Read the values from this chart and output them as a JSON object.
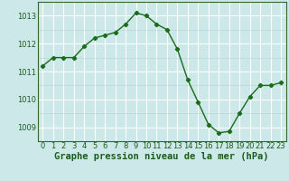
{
  "x": [
    0,
    1,
    2,
    3,
    4,
    5,
    6,
    7,
    8,
    9,
    10,
    11,
    12,
    13,
    14,
    15,
    16,
    17,
    18,
    19,
    20,
    21,
    22,
    23
  ],
  "y": [
    1011.2,
    1011.5,
    1011.5,
    1011.5,
    1011.9,
    1012.2,
    1012.3,
    1012.4,
    1012.7,
    1013.1,
    1013.0,
    1012.7,
    1012.5,
    1011.8,
    1010.7,
    1009.9,
    1009.1,
    1008.8,
    1008.85,
    1009.5,
    1010.1,
    1010.5,
    1010.5,
    1010.6
  ],
  "line_color": "#1a6b1a",
  "marker": "D",
  "marker_size": 2.2,
  "background_color": "#cce8e8",
  "grid_color_major": "#ffffff",
  "grid_color_minor": "#b8d8d8",
  "xlabel": "Graphe pression niveau de la mer (hPa)",
  "ylim": [
    1008.5,
    1013.5
  ],
  "yticks": [
    1009,
    1010,
    1011,
    1012,
    1013
  ],
  "xticks": [
    0,
    1,
    2,
    3,
    4,
    5,
    6,
    7,
    8,
    9,
    10,
    11,
    12,
    13,
    14,
    15,
    16,
    17,
    18,
    19,
    20,
    21,
    22,
    23
  ],
  "label_fontsize": 7.5,
  "tick_fontsize": 6.0
}
